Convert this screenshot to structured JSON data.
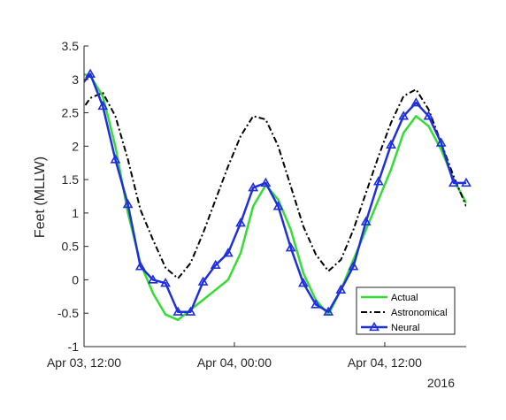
{
  "chart_data": {
    "type": "line",
    "title": "",
    "xlabel": "",
    "ylabel": "Feet (MLLW)",
    "year_label": "2016",
    "x_unit": "hours",
    "x_start": "Apr 03, 12:00",
    "xlim": [
      0,
      30.5
    ],
    "ylim": [
      -1,
      3.5
    ],
    "x_ticks": [
      {
        "x": 0,
        "label": "Apr 03, 12:00"
      },
      {
        "x": 12,
        "label": "Apr 04, 00:00"
      },
      {
        "x": 24,
        "label": "Apr 04, 12:00"
      }
    ],
    "y_ticks": [
      {
        "y": -1,
        "label": "-1"
      },
      {
        "y": -0.5,
        "label": "-0.5"
      },
      {
        "y": 0,
        "label": "0"
      },
      {
        "y": 0.5,
        "label": "0.5"
      },
      {
        "y": 1,
        "label": "1"
      },
      {
        "y": 1.5,
        "label": "1.5"
      },
      {
        "y": 2,
        "label": "2"
      },
      {
        "y": 2.5,
        "label": "2.5"
      },
      {
        "y": 3,
        "label": "3"
      },
      {
        "y": 3.5,
        "label": "3.5"
      }
    ],
    "grid": false,
    "legend_position": "bottom-right",
    "series": [
      {
        "name": "Actual",
        "color": "#33dd33",
        "style": "solid",
        "marker": "none",
        "x": [
          -0.5,
          0.5,
          1.5,
          2.5,
          3.5,
          4.5,
          5.5,
          6.5,
          7.5,
          8.5,
          9.5,
          10.5,
          11.5,
          12.5,
          13.5,
          14.5,
          15.5,
          16.5,
          17.5,
          18.5,
          19.5,
          20.5,
          21.5,
          22.5,
          23.5,
          24.5,
          25.5,
          26.5,
          27.5,
          28.5,
          29.5,
          30.5
        ],
        "y": [
          3.1,
          3.05,
          2.75,
          2.0,
          1.0,
          0.25,
          -0.2,
          -0.52,
          -0.6,
          -0.45,
          -0.3,
          -0.15,
          0.0,
          0.4,
          1.1,
          1.42,
          1.2,
          0.75,
          0.1,
          -0.3,
          -0.52,
          -0.15,
          0.3,
          0.75,
          1.2,
          1.65,
          2.2,
          2.45,
          2.3,
          1.95,
          1.5,
          1.15
        ]
      },
      {
        "name": "Astronomical",
        "color": "#000000",
        "style": "dashdot",
        "marker": "none",
        "x": [
          -0.5,
          0.5,
          1.5,
          2.5,
          3.5,
          4.5,
          5.5,
          6.5,
          7.5,
          8.5,
          9.5,
          10.5,
          11.5,
          12.5,
          13.5,
          14.5,
          15.5,
          16.5,
          17.5,
          18.5,
          19.5,
          20.5,
          21.5,
          22.5,
          23.5,
          24.5,
          25.5,
          26.5,
          27.5,
          28.5,
          29.5,
          30.5
        ],
        "y": [
          2.45,
          2.72,
          2.8,
          2.45,
          1.8,
          1.05,
          0.6,
          0.18,
          0.02,
          0.25,
          0.7,
          1.2,
          1.7,
          2.15,
          2.45,
          2.4,
          2.0,
          1.4,
          0.8,
          0.38,
          0.13,
          0.3,
          0.75,
          1.3,
          1.85,
          2.35,
          2.75,
          2.85,
          2.55,
          2.05,
          1.55,
          1.1
        ]
      },
      {
        "name": "Neural",
        "color": "#1f2fdc",
        "style": "solid",
        "marker": "triangle",
        "x": [
          -0.5,
          0.5,
          1.5,
          2.5,
          3.5,
          4.5,
          5.5,
          6.5,
          7.5,
          8.5,
          9.5,
          10.5,
          11.5,
          12.5,
          13.5,
          14.5,
          15.5,
          16.5,
          17.5,
          18.5,
          19.5,
          20.5,
          21.5,
          22.5,
          23.5,
          24.5,
          25.5,
          26.5,
          27.5,
          28.5,
          29.5,
          30.5
        ],
        "y": [
          2.85,
          3.08,
          2.6,
          1.8,
          1.13,
          0.2,
          0.0,
          -0.05,
          -0.48,
          -0.48,
          -0.03,
          0.22,
          0.4,
          0.85,
          1.38,
          1.45,
          1.1,
          0.48,
          -0.05,
          -0.37,
          -0.48,
          -0.15,
          0.2,
          0.87,
          1.47,
          2.02,
          2.45,
          2.65,
          2.45,
          2.05,
          1.45,
          1.45
        ]
      }
    ]
  }
}
